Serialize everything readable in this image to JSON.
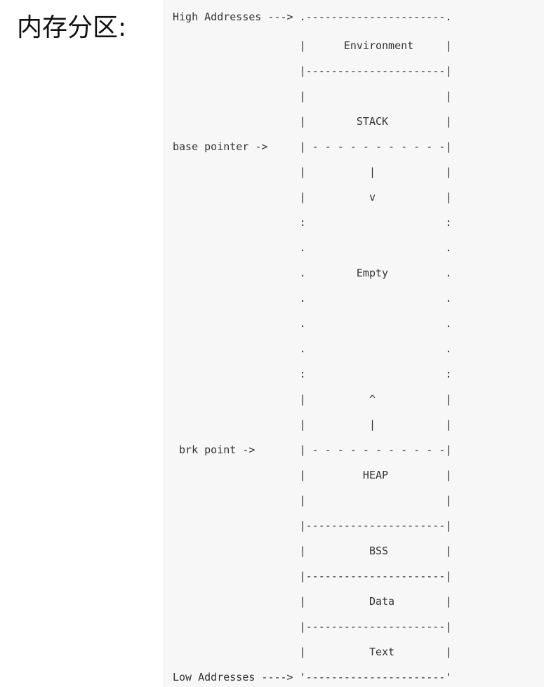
{
  "heading": "内存分区:",
  "diagram_lines": [
    "High Addresses ---> .----------------------.",
    "                    |      Environment     |",
    "                    |----------------------|",
    "                    |                      |",
    "                    |        STACK         |",
    "base pointer ->     | - - - - - - - - - - -|",
    "                    |          |           |",
    "                    |          v           |",
    "                    :                      :",
    "                    .                      .",
    "                    .        Empty         .",
    "                    .                      .",
    "                    .                      .",
    "                    .                      .",
    "                    :                      :",
    "                    |          ^           |",
    "                    |          |           |",
    " brk point ->       | - - - - - - - - - - -|",
    "                    |         HEAP         |",
    "                    |                      |",
    "                    |----------------------|",
    "                    |          BSS         |",
    "                    |----------------------|",
    "                    |          Data        |",
    "                    |----------------------|",
    "                    |          Text        |",
    "Low Addresses ----> '----------------------'"
  ]
}
